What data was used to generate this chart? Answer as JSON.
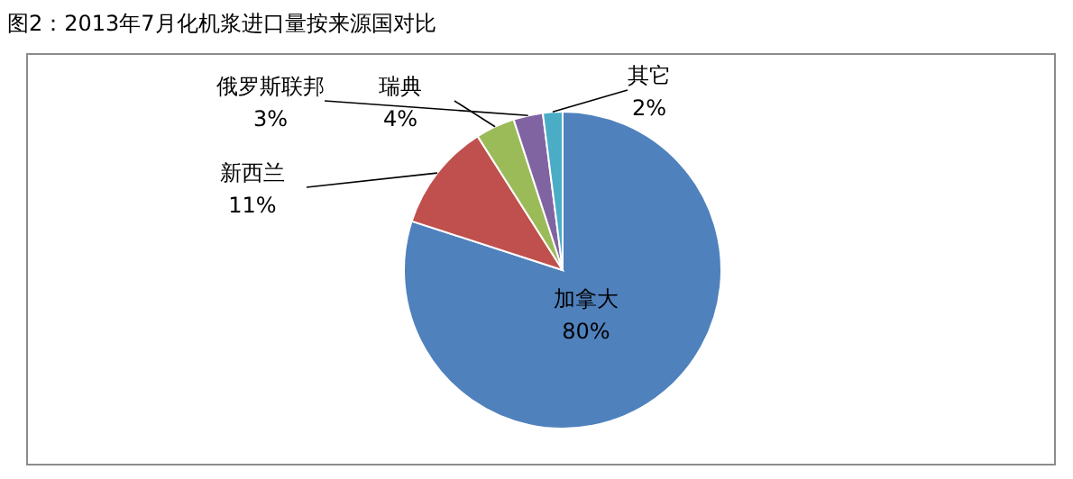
{
  "chart_data": {
    "type": "pie",
    "title": "图2：2013年7月化机浆进口量按来源国对比",
    "categories": [
      "加拿大",
      "新西兰",
      "瑞典",
      "俄罗斯联邦",
      "其它"
    ],
    "values": [
      80,
      11,
      4,
      3,
      2
    ],
    "colors": [
      "#4f81bd",
      "#c0504d",
      "#9bbb59",
      "#8064a2",
      "#4bacc6"
    ],
    "value_labels": [
      "80%",
      "11%",
      "4%",
      "3%",
      "2%"
    ]
  }
}
